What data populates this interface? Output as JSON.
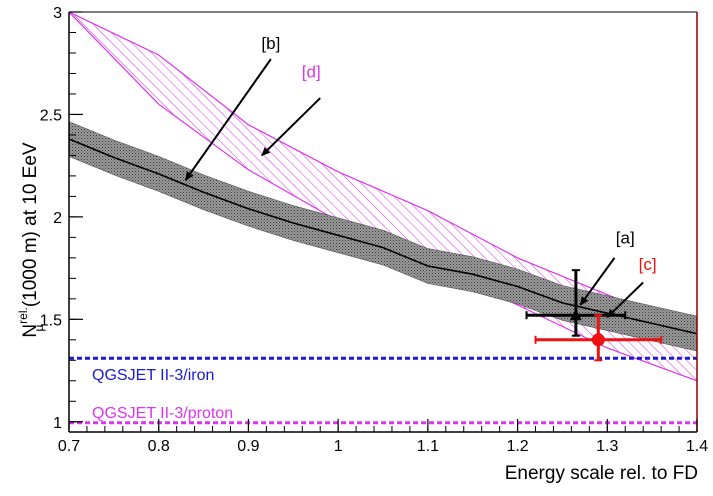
{
  "chart_data": {
    "type": "line",
    "xlabel": "Energy scale rel. to FD",
    "ylabel_main": "N",
    "ylabel_sub": "μ",
    "ylabel_sup": "rel.",
    "ylabel_rest": "(1000 m) at 10 EeV",
    "xlim": [
      0.7,
      1.4
    ],
    "ylim": [
      0.95,
      3.0
    ],
    "x_ticks": [
      0.7,
      0.8,
      0.9,
      1.0,
      1.1,
      1.2,
      1.3,
      1.4
    ],
    "x_tick_labels": [
      "0.7",
      "0.8",
      "0.9",
      "1",
      "1.1",
      "1.2",
      "1.3",
      "1.4"
    ],
    "y_ticks": [
      1.0,
      1.5,
      2.0,
      2.5,
      3.0
    ],
    "y_tick_labels": [
      "1",
      "1.5",
      "2",
      "2.5",
      "3"
    ],
    "grid": false,
    "colors": {
      "black": "#000000",
      "gray_band": "#707070",
      "magenta": "#dd33ee",
      "blue": "#1a1ad6",
      "red": "#ee1111",
      "axis_right": "#8b0000"
    },
    "series": [
      {
        "name": "[b]",
        "style": "line-with-gray-band",
        "x": [
          0.7,
          0.75,
          0.8,
          0.85,
          0.9,
          0.95,
          1.0,
          1.05,
          1.1,
          1.15,
          1.2,
          1.25,
          1.3,
          1.35,
          1.4
        ],
        "y": [
          2.38,
          2.29,
          2.21,
          2.12,
          2.04,
          1.97,
          1.91,
          1.85,
          1.76,
          1.72,
          1.66,
          1.58,
          1.53,
          1.48,
          1.43
        ],
        "band_half_width": 0.085
      },
      {
        "name": "[d]",
        "style": "hatched-band",
        "x": [
          0.7,
          0.8,
          0.9,
          1.0,
          1.1,
          1.2,
          1.3,
          1.4
        ],
        "y_upper": [
          3.0,
          2.79,
          2.45,
          2.22,
          2.03,
          1.8,
          1.62,
          1.45
        ],
        "y_lower": [
          3.0,
          2.55,
          2.23,
          1.98,
          1.77,
          1.57,
          1.36,
          1.2
        ]
      }
    ],
    "data_points": [
      {
        "name": "[a]",
        "color": "#000000",
        "marker": "triangle",
        "x": 1.265,
        "y": 1.52,
        "x_err": [
          1.21,
          1.32
        ],
        "y_err": [
          1.42,
          1.74
        ]
      },
      {
        "name": "[c]",
        "color": "#ee1111",
        "marker": "circle",
        "x": 1.29,
        "y": 1.4,
        "x_err": [
          1.22,
          1.36
        ],
        "y_err": [
          1.3,
          1.52
        ]
      }
    ],
    "reference_lines": [
      {
        "label": "QGSJET II-3/iron",
        "y": 1.31,
        "color": "#1a1ad6",
        "style": "dashed"
      },
      {
        "label": "QGSJET II-3/proton",
        "y": 0.995,
        "color": "#dd33ee",
        "style": "dashed"
      }
    ],
    "annotations": [
      {
        "text": "[b]",
        "color": "#000000",
        "text_x": 0.925,
        "text_y": 2.82,
        "arrow_from": [
          0.925,
          2.77
        ],
        "arrow_to": [
          0.83,
          2.18
        ]
      },
      {
        "text": "[d]",
        "color": "#dd33ee",
        "text_x": 0.97,
        "text_y": 2.68,
        "arrow_from": [
          0.98,
          2.58
        ],
        "arrow_to": [
          0.915,
          2.3
        ]
      },
      {
        "text": "[a]",
        "color": "#000000",
        "text_x": 1.32,
        "text_y": 1.87,
        "arrow_from": [
          1.308,
          1.8
        ],
        "arrow_to": [
          1.27,
          1.57
        ]
      },
      {
        "text": "[c]",
        "color": "#ee1111",
        "text_x": 1.345,
        "text_y": 1.74,
        "arrow_from": [
          1.34,
          1.68
        ],
        "arrow_to": [
          1.3,
          1.51
        ]
      }
    ]
  }
}
